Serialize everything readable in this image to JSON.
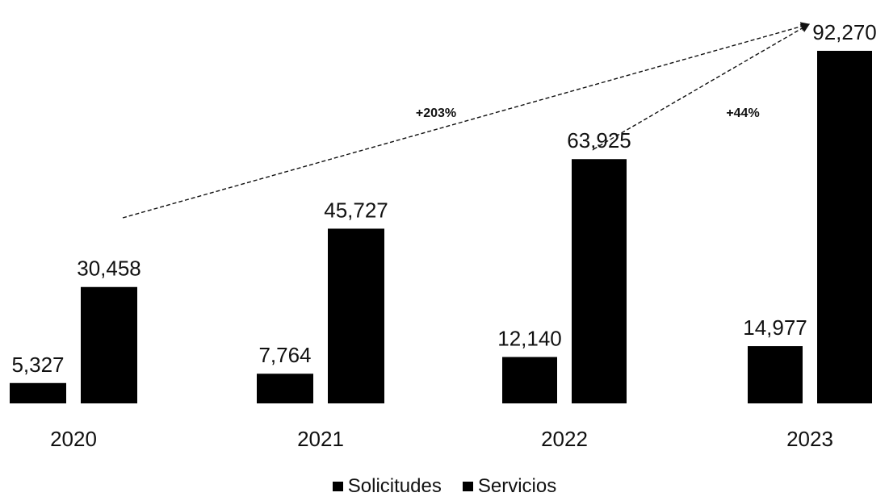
{
  "chart_data": {
    "type": "bar",
    "categories": [
      "2020",
      "2021",
      "2022",
      "2023"
    ],
    "series": [
      {
        "name": "Solicitudes",
        "values": [
          5327,
          7764,
          12140,
          14977
        ],
        "labels": [
          "5,327",
          "7,764",
          "12,140",
          "14,977"
        ],
        "color": "#000000"
      },
      {
        "name": "Servicios",
        "values": [
          30458,
          45727,
          63925,
          92270
        ],
        "labels": [
          "30,458",
          "45,727",
          "63,925",
          "92,270"
        ],
        "color": "#000000"
      }
    ],
    "title": "",
    "xlabel": "",
    "ylabel": "",
    "ylim": [
      0,
      100000
    ],
    "grid": false,
    "legend_position": "bottom",
    "annotations": [
      {
        "text": "+203%",
        "from": "2020",
        "to": "2023"
      },
      {
        "text": "+44%",
        "from": "2022",
        "to": "2023"
      }
    ]
  }
}
